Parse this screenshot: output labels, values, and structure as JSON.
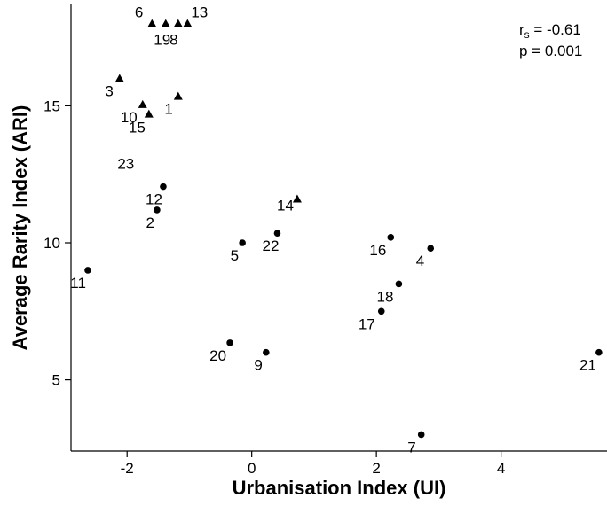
{
  "chart_data": {
    "type": "scatter",
    "title": "",
    "xlabel": "Urbanisation Index (UI)",
    "ylabel": "Average Rarity Index (ARI)",
    "xlim": [
      -2.9,
      5.7
    ],
    "ylim": [
      2.4,
      18.7
    ],
    "xticks": [
      -2,
      0,
      2,
      4
    ],
    "xtick_labels": [
      "-2",
      "0",
      "2",
      "4"
    ],
    "yticks": [
      5,
      10,
      15
    ],
    "ytick_labels": [
      "5",
      "10",
      "15"
    ],
    "grid": false,
    "legend": "none",
    "annotation": {
      "r_label": "r",
      "r_subscript": "s",
      "r_value": " = -0.61",
      "p_text": "p = 0.001"
    },
    "series": [
      {
        "marker": "triangle",
        "points": [
          {
            "label": "6",
            "x": -1.6,
            "y": 18.0
          },
          {
            "label": "19",
            "x": -1.38,
            "y": 18.0
          },
          {
            "label": "8",
            "x": -1.18,
            "y": 18.0
          },
          {
            "label": "13",
            "x": -1.03,
            "y": 18.0
          },
          {
            "label": "3",
            "x": -2.12,
            "y": 16.0
          },
          {
            "label": "1",
            "x": -1.18,
            "y": 15.35
          },
          {
            "label": "10",
            "x": -1.75,
            "y": 15.05
          },
          {
            "label": "15",
            "x": -1.65,
            "y": 14.7
          },
          {
            "label": "14",
            "x": 0.73,
            "y": 11.6
          }
        ]
      },
      {
        "marker": "circle",
        "points": [
          {
            "label": "12",
            "x": -1.42,
            "y": 12.05
          },
          {
            "label": "2",
            "x": -1.52,
            "y": 11.2
          },
          {
            "label": "11",
            "x": -2.63,
            "y": 9.0
          },
          {
            "label": "5",
            "x": -0.15,
            "y": 10.0
          },
          {
            "label": "22",
            "x": 0.41,
            "y": 10.35
          },
          {
            "label": "16",
            "x": 2.23,
            "y": 10.2
          },
          {
            "label": "4",
            "x": 2.87,
            "y": 9.8
          },
          {
            "label": "18",
            "x": 2.36,
            "y": 8.5
          },
          {
            "label": "17",
            "x": 2.08,
            "y": 7.5
          },
          {
            "label": "20",
            "x": -0.35,
            "y": 6.35
          },
          {
            "label": "9",
            "x": 0.23,
            "y": 6.0
          },
          {
            "label": "21",
            "x": 5.57,
            "y": 6.0
          },
          {
            "label": "7",
            "x": 2.72,
            "y": 3.0
          }
        ]
      }
    ],
    "unplotted_labels": [
      {
        "label": "23",
        "x": -2.02,
        "y": 12.9
      }
    ]
  }
}
